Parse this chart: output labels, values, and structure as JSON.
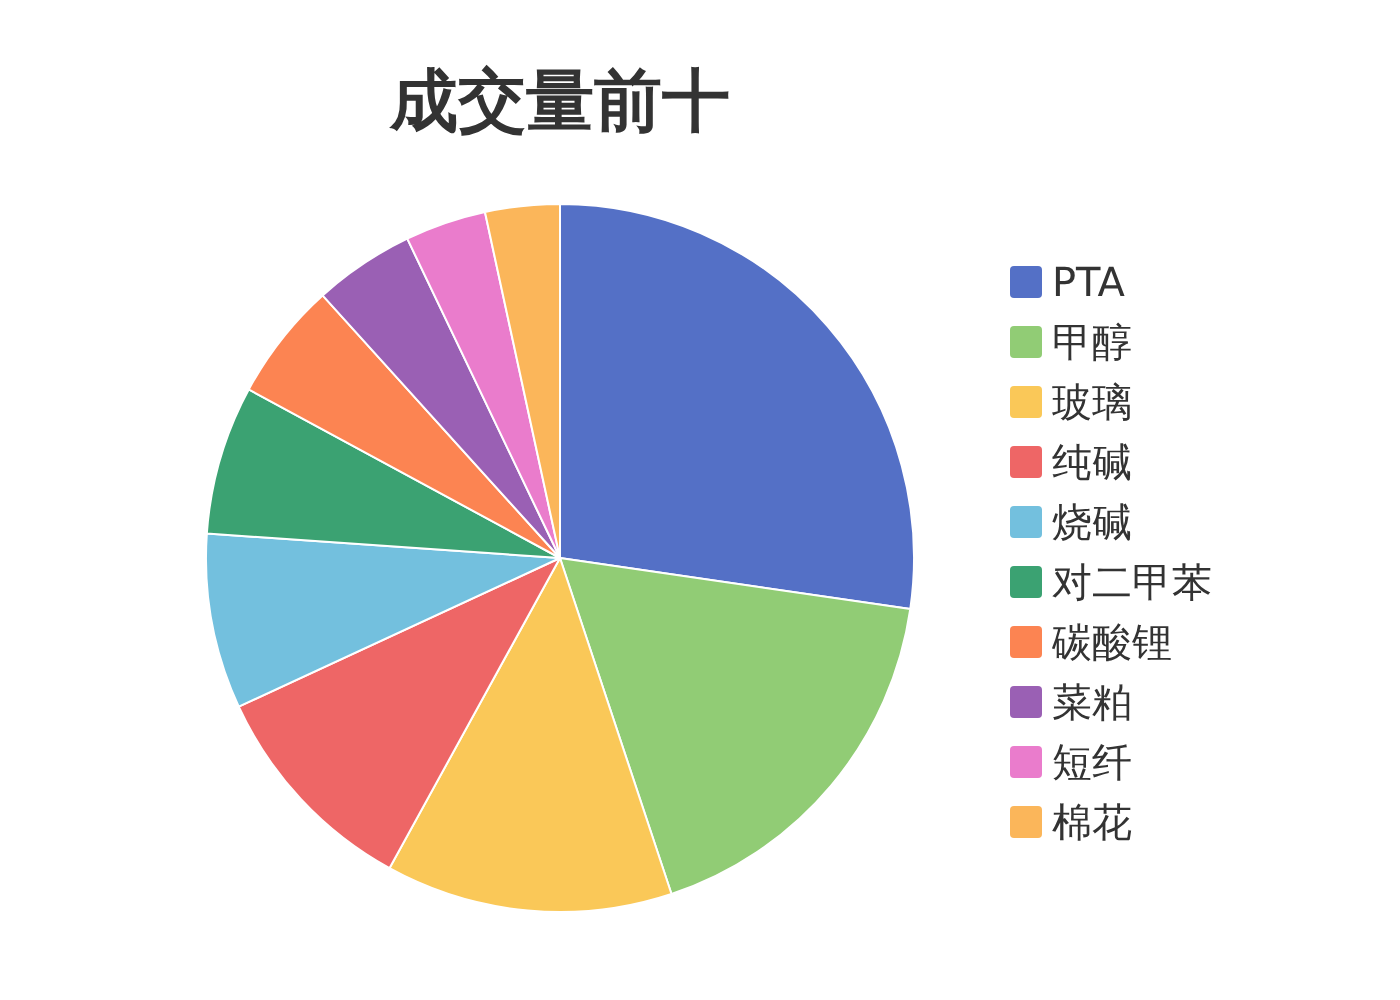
{
  "chart_data": {
    "type": "pie",
    "title": "成交量前十",
    "categories": [
      "PTA",
      "甲醇",
      "玻璃",
      "纯碱",
      "烧碱",
      "对二甲苯",
      "碳酸锂",
      "菜粕",
      "短纤",
      "棉花"
    ],
    "values": [
      27.3,
      17.6,
      13.1,
      10.1,
      8.0,
      6.8,
      5.4,
      4.6,
      3.7,
      3.4
    ],
    "colors": [
      "#5470c6",
      "#91cc75",
      "#fac858",
      "#ee6666",
      "#73c0de",
      "#3ba272",
      "#fc8452",
      "#9a60b4",
      "#ea7ccc",
      "#fbb65a"
    ],
    "legend": "right"
  }
}
